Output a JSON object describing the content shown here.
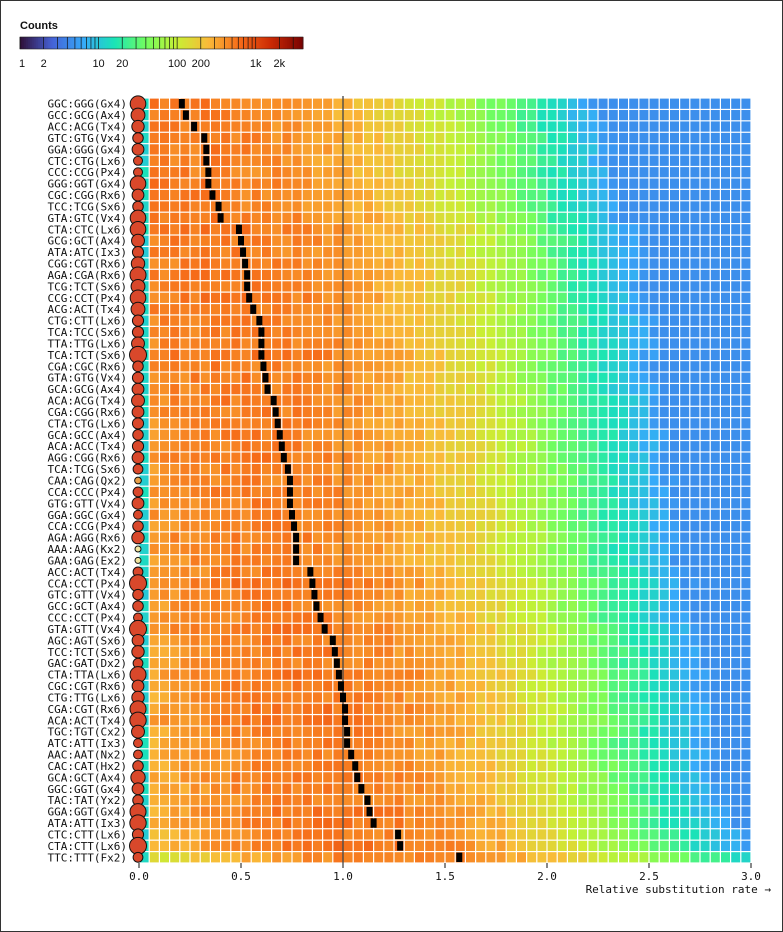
{
  "chart_data": {
    "type": "heatmap",
    "legend": {
      "title": "Counts",
      "ticks": [
        "1",
        "2",
        "10",
        "20",
        "100",
        "200",
        "1k",
        "2k"
      ],
      "scale": "log"
    },
    "xlabel": "Relative substitution rate →",
    "x_ticks": [
      "0.0",
      "0.5",
      "1.0",
      "1.5",
      "2.0",
      "2.5",
      "3.0"
    ],
    "xlim": [
      0,
      3
    ],
    "reference_line_x": 1.0,
    "colormap": [
      "#30123b",
      "#4662d7",
      "#36aaf9",
      "#1ae4b6",
      "#72fe5e",
      "#c8ef34",
      "#faba39",
      "#f66b19",
      "#cb2a04",
      "#7a0403"
    ],
    "rows": [
      {
        "label": "GGC:GGG(Gx4)",
        "rate": 0.21,
        "count": 1500
      },
      {
        "label": "GCC:GCG(Ax4)",
        "rate": 0.23,
        "count": 1100
      },
      {
        "label": "ACC:ACG(Tx4)",
        "rate": 0.27,
        "count": 800
      },
      {
        "label": "GTC:GTG(Vx4)",
        "rate": 0.32,
        "count": 500
      },
      {
        "label": "GGA:GGG(Gx4)",
        "rate": 0.33,
        "count": 700
      },
      {
        "label": "CTC:CTG(Lx6)",
        "rate": 0.33,
        "count": 300
      },
      {
        "label": "CCC:CCG(Px4)",
        "rate": 0.34,
        "count": 300
      },
      {
        "label": "GGG:GGT(Gx4)",
        "rate": 0.34,
        "count": 1500
      },
      {
        "label": "CGC:CGG(Rx6)",
        "rate": 0.36,
        "count": 700
      },
      {
        "label": "TCC:TCG(Sx6)",
        "rate": 0.39,
        "count": 500
      },
      {
        "label": "GTA:GTC(Vx4)",
        "rate": 0.4,
        "count": 1500
      },
      {
        "label": "CTA:CTC(Lx6)",
        "rate": 0.49,
        "count": 1500
      },
      {
        "label": "GCG:GCT(Ax4)",
        "rate": 0.5,
        "count": 900
      },
      {
        "label": "ATA:ATC(Ix3)",
        "rate": 0.51,
        "count": 600
      },
      {
        "label": "CGG:CGT(Rx6)",
        "rate": 0.52,
        "count": 1000
      },
      {
        "label": "AGA:CGA(Rx6)",
        "rate": 0.53,
        "count": 1600
      },
      {
        "label": "TCG:TCT(Sx6)",
        "rate": 0.53,
        "count": 1100
      },
      {
        "label": "CCG:CCT(Px4)",
        "rate": 0.54,
        "count": 1500
      },
      {
        "label": "ACG:ACT(Tx4)",
        "rate": 0.56,
        "count": 1100
      },
      {
        "label": "CTG:CTT(Lx6)",
        "rate": 0.59,
        "count": 600
      },
      {
        "label": "TCA:TCC(Sx6)",
        "rate": 0.6,
        "count": 600
      },
      {
        "label": "TTA:TTG(Lx6)",
        "rate": 0.6,
        "count": 900
      },
      {
        "label": "TCA:TCT(Sx6)",
        "rate": 0.6,
        "count": 2000
      },
      {
        "label": "CGA:CGC(Rx6)",
        "rate": 0.61,
        "count": 500
      },
      {
        "label": "GTA:GTG(Vx4)",
        "rate": 0.62,
        "count": 600
      },
      {
        "label": "GCA:GCG(Ax4)",
        "rate": 0.63,
        "count": 700
      },
      {
        "label": "ACA:ACG(Tx4)",
        "rate": 0.66,
        "count": 900
      },
      {
        "label": "CGA:CGG(Rx6)",
        "rate": 0.67,
        "count": 700
      },
      {
        "label": "CTA:CTG(Lx6)",
        "rate": 0.68,
        "count": 600
      },
      {
        "label": "GCA:GCC(Ax4)",
        "rate": 0.69,
        "count": 500
      },
      {
        "label": "ACA:ACC(Tx4)",
        "rate": 0.7,
        "count": 600
      },
      {
        "label": "AGG:CGG(Rx6)",
        "rate": 0.71,
        "count": 700
      },
      {
        "label": "TCA:TCG(Sx6)",
        "rate": 0.73,
        "count": 400
      },
      {
        "label": "CAA:CAG(Qx2)",
        "rate": 0.74,
        "count": 100
      },
      {
        "label": "CCA:CCC(Px4)",
        "rate": 0.74,
        "count": 400
      },
      {
        "label": "GTG:GTT(Vx4)",
        "rate": 0.74,
        "count": 700
      },
      {
        "label": "GGA:GGC(Gx4)",
        "rate": 0.75,
        "count": 300
      },
      {
        "label": "CCA:CCG(Px4)",
        "rate": 0.76,
        "count": 500
      },
      {
        "label": "AGA:AGG(Rx6)",
        "rate": 0.77,
        "count": 800
      },
      {
        "label": "AAA:AAG(Kx2)",
        "rate": 0.77,
        "count": 60
      },
      {
        "label": "GAA:GAG(Ex2)",
        "rate": 0.77,
        "count": 60
      },
      {
        "label": "ACC:ACT(Tx4)",
        "rate": 0.84,
        "count": 400
      },
      {
        "label": "CCA:CCT(Px4)",
        "rate": 0.85,
        "count": 2000
      },
      {
        "label": "GTC:GTT(Vx4)",
        "rate": 0.86,
        "count": 500
      },
      {
        "label": "GCC:GCT(Ax4)",
        "rate": 0.87,
        "count": 500
      },
      {
        "label": "CCC:CCT(Px4)",
        "rate": 0.89,
        "count": 300
      },
      {
        "label": "GTA:GTT(Vx4)",
        "rate": 0.91,
        "count": 2000
      },
      {
        "label": "AGC:AGT(Sx6)",
        "rate": 0.95,
        "count": 700
      },
      {
        "label": "TCC:TCT(Sx6)",
        "rate": 0.96,
        "count": 800
      },
      {
        "label": "GAC:GAT(Dx2)",
        "rate": 0.97,
        "count": 400
      },
      {
        "label": "CTA:TTA(Lx6)",
        "rate": 0.98,
        "count": 1600
      },
      {
        "label": "CGC:CGT(Rx6)",
        "rate": 0.99,
        "count": 700
      },
      {
        "label": "CTG:TTG(Lx6)",
        "rate": 1.0,
        "count": 800
      },
      {
        "label": "CGA:CGT(Rx6)",
        "rate": 1.01,
        "count": 1600
      },
      {
        "label": "ACA:ACT(Tx4)",
        "rate": 1.01,
        "count": 1700
      },
      {
        "label": "TGC:TGT(Cx2)",
        "rate": 1.02,
        "count": 900
      },
      {
        "label": "ATC:ATT(Ix3)",
        "rate": 1.02,
        "count": 300
      },
      {
        "label": "AAC:AAT(Nx2)",
        "rate": 1.04,
        "count": 300
      },
      {
        "label": "CAC:CAT(Hx2)",
        "rate": 1.06,
        "count": 500
      },
      {
        "label": "GCA:GCT(Ax4)",
        "rate": 1.07,
        "count": 1200
      },
      {
        "label": "GGC:GGT(Gx4)",
        "rate": 1.09,
        "count": 700
      },
      {
        "label": "TAC:TAT(Yx2)",
        "rate": 1.12,
        "count": 500
      },
      {
        "label": "GGA:GGT(Gx4)",
        "rate": 1.13,
        "count": 1600
      },
      {
        "label": "ATA:ATT(Ix3)",
        "rate": 1.15,
        "count": 1700
      },
      {
        "label": "CTC:CTT(Lx6)",
        "rate": 1.27,
        "count": 600
      },
      {
        "label": "CTA:CTT(Lx6)",
        "rate": 1.28,
        "count": 2000
      },
      {
        "label": "TTC:TTT(Fx2)",
        "rate": 1.57,
        "count": 400
      }
    ]
  }
}
